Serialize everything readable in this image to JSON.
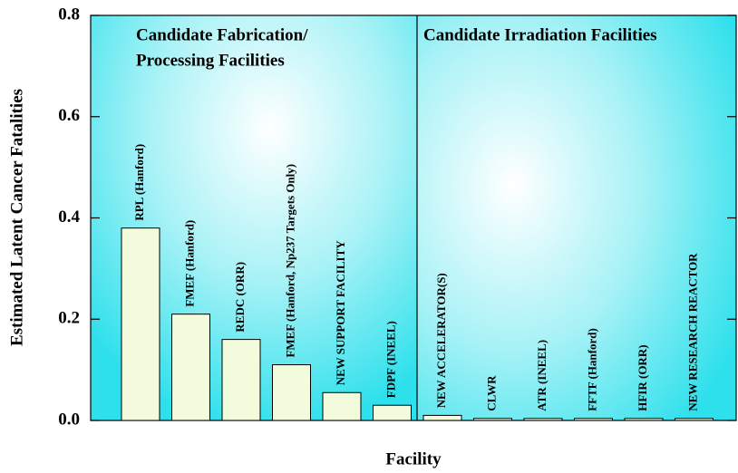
{
  "chart_data": {
    "type": "bar",
    "xlabel": "Facility",
    "ylabel": "Estimated Latent Cancer Fatalities",
    "annotations": [
      "Candidate Fabrication/",
      "Processing Facilities",
      "Candidate Irradiation Facilities"
    ],
    "categories": [
      "RPL (Hanford)",
      "FMEF (Hanford)",
      "REDC (ORR)",
      "FMEF (Hanford, Np237 Targets Only)",
      "NEW SUPPORT FACILITY",
      "FDPF (INEEL)",
      "NEW ACCELERATOR(S)",
      "CLWR",
      "ATR (INEEL)",
      "FFTF (Hanford)",
      "HFIR (ORR)",
      "NEW RESEARCH REACTOR"
    ],
    "values": [
      0.38,
      0.21,
      0.16,
      0.11,
      0.055,
      0.03,
      0.01,
      0.004,
      0.004,
      0.004,
      0.004,
      0.004
    ],
    "color": "#f2fcdc",
    "ylim": [
      0,
      0.8
    ],
    "yticks": [
      {
        "value": 0,
        "label": "0.0"
      },
      0.2,
      0.4,
      0.6,
      0.8
    ]
  }
}
